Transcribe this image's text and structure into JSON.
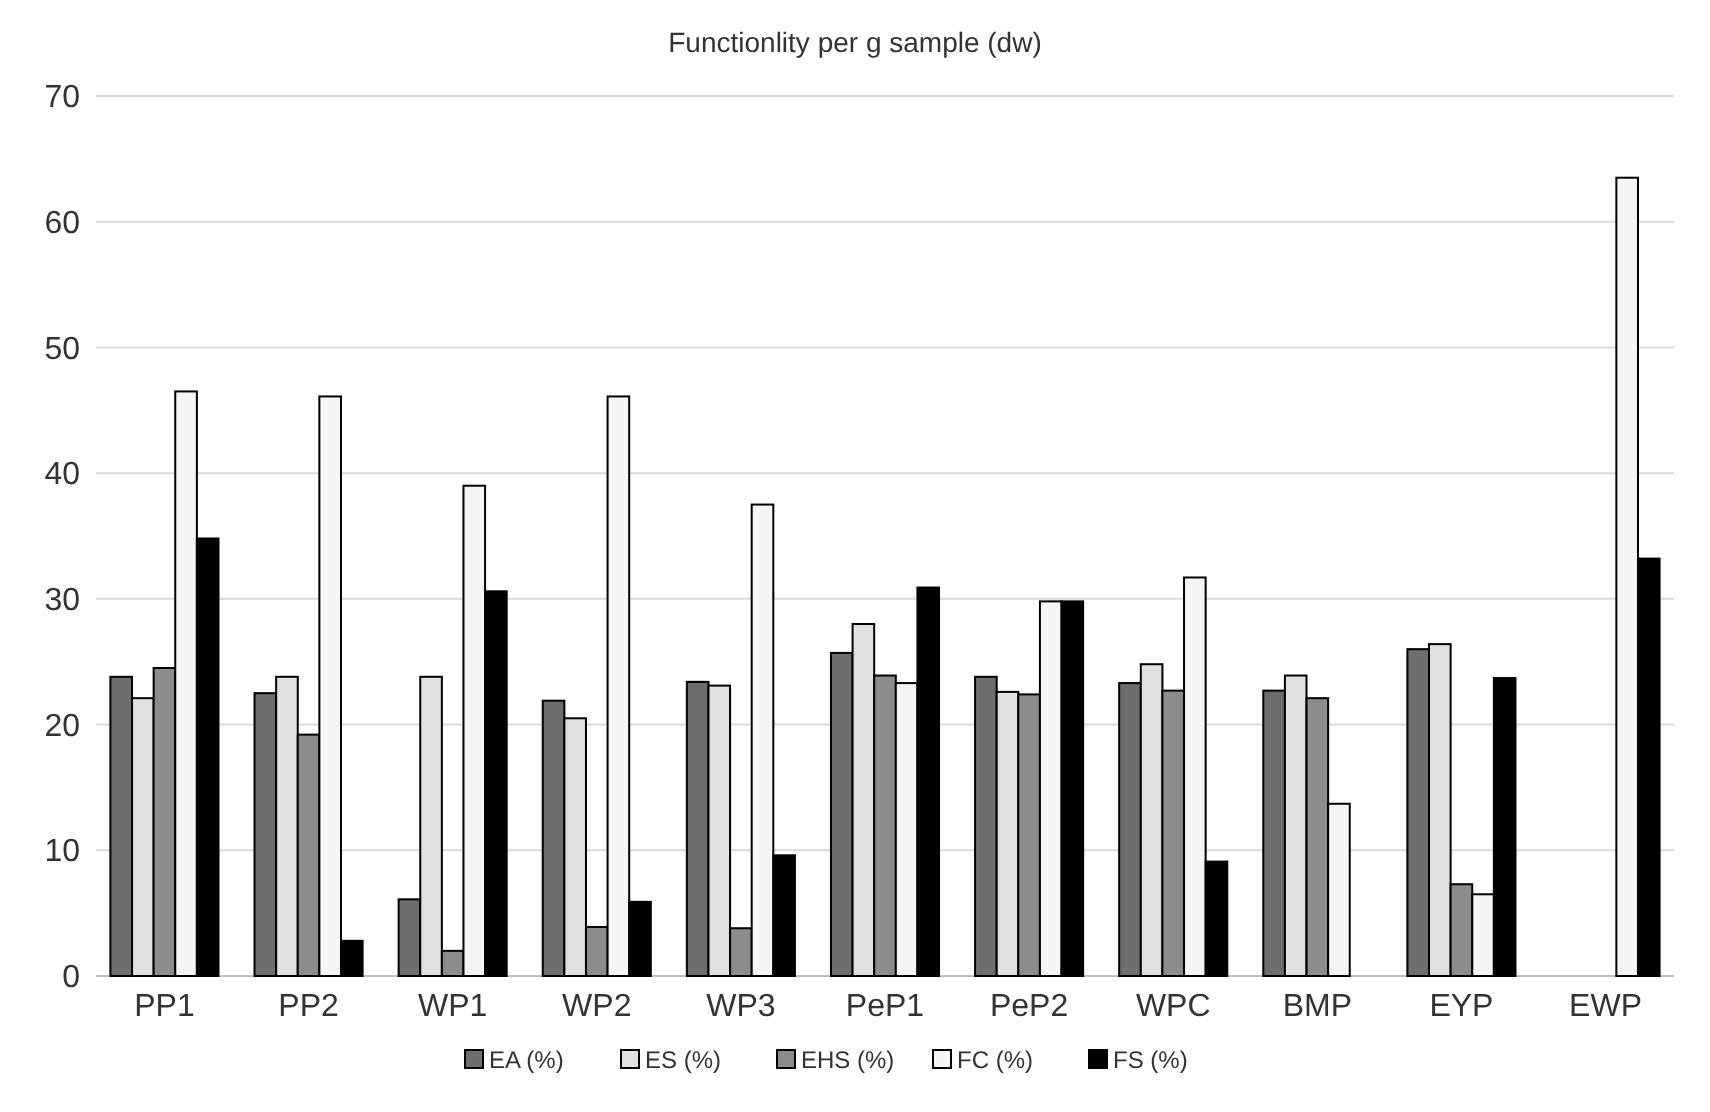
{
  "chart_data": {
    "type": "bar",
    "title": "Functionlity per g sample (dw)",
    "categories": [
      "PP1",
      "PP2",
      "WP1",
      "WP2",
      "WP3",
      "PeP1",
      "PeP2",
      "WPC",
      "BMP",
      "EYP",
      "EWP"
    ],
    "series": [
      {
        "name": "EA (%)",
        "color": "#6e6e6e",
        "values": [
          23.8,
          22.5,
          6.1,
          21.9,
          23.4,
          25.7,
          23.8,
          23.3,
          22.7,
          26.0,
          null
        ]
      },
      {
        "name": "ES (%)",
        "color": "#e0e0e0",
        "values": [
          22.1,
          23.8,
          23.8,
          20.5,
          23.1,
          28.0,
          22.6,
          24.8,
          23.9,
          26.4,
          null
        ]
      },
      {
        "name": "EHS (%)",
        "color": "#8c8c8c",
        "values": [
          24.5,
          19.2,
          2.0,
          3.9,
          3.8,
          23.9,
          22.4,
          22.7,
          22.1,
          7.3,
          null
        ]
      },
      {
        "name": "FC (%)",
        "color": "#f5f5f5",
        "values": [
          46.5,
          46.1,
          39.0,
          46.1,
          37.5,
          23.3,
          29.8,
          31.7,
          13.7,
          6.5,
          63.5
        ]
      },
      {
        "name": "FS (%)",
        "color": "#000000",
        "values": [
          34.8,
          2.8,
          30.6,
          5.9,
          9.6,
          30.9,
          29.8,
          9.1,
          null,
          23.7,
          33.2
        ]
      }
    ],
    "ylim": [
      0,
      70
    ],
    "yticks": [
      0,
      10,
      20,
      30,
      40,
      50,
      60,
      70
    ],
    "grid": "y",
    "legend": "bottom"
  }
}
